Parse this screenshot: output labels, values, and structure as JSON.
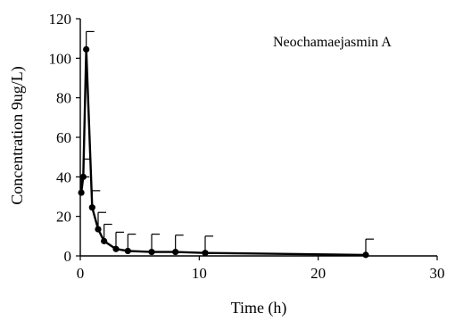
{
  "chart_data": {
    "type": "line",
    "title": "",
    "annotation": "Neochamaejasmin  A",
    "xlabel": "Time (h)",
    "ylabel": "Concentration 9ug/L)",
    "xlim": [
      0,
      30
    ],
    "ylim": [
      0,
      120
    ],
    "xticks": [
      "0",
      "10",
      "20",
      "30"
    ],
    "yticks": [
      "0",
      "20",
      "40",
      "60",
      "80",
      "100",
      "120"
    ],
    "grid": false,
    "legend": "none",
    "colors": {
      "line": "#000000",
      "marker": "#000000"
    },
    "series": [
      {
        "x": [
          0.083,
          0.25,
          0.5,
          1.0,
          1.5,
          2.0,
          3.0,
          4.0,
          6.0,
          8.0,
          10.5,
          24.0
        ],
        "y": [
          32,
          40,
          104.5,
          24.5,
          13.5,
          7.5,
          3.5,
          2.5,
          2.0,
          2.0,
          1.5,
          0.5
        ],
        "err": [
          8,
          9,
          9,
          8.5,
          8.5,
          8.5,
          8.5,
          8.5,
          9,
          8.5,
          8.5,
          8
        ]
      }
    ]
  }
}
